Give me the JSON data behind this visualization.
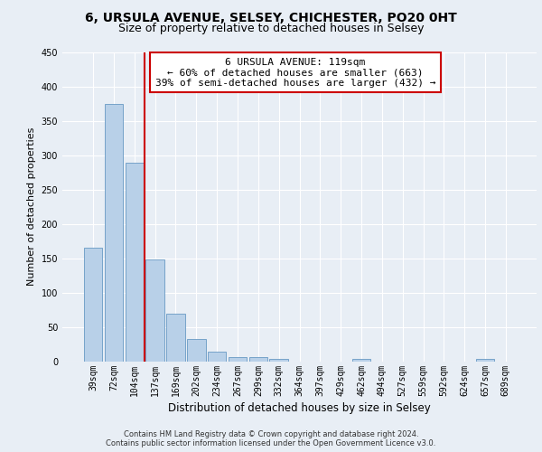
{
  "title_line1": "6, URSULA AVENUE, SELSEY, CHICHESTER, PO20 0HT",
  "title_line2": "Size of property relative to detached houses in Selsey",
  "xlabel": "Distribution of detached houses by size in Selsey",
  "ylabel": "Number of detached properties",
  "categories": [
    "39sqm",
    "72sqm",
    "104sqm",
    "137sqm",
    "169sqm",
    "202sqm",
    "234sqm",
    "267sqm",
    "299sqm",
    "332sqm",
    "364sqm",
    "397sqm",
    "429sqm",
    "462sqm",
    "494sqm",
    "527sqm",
    "559sqm",
    "592sqm",
    "624sqm",
    "657sqm",
    "689sqm"
  ],
  "values": [
    165,
    375,
    289,
    148,
    70,
    33,
    14,
    7,
    6,
    4,
    0,
    0,
    0,
    4,
    0,
    0,
    0,
    0,
    0,
    4,
    0
  ],
  "bar_color": "#b8d0e8",
  "bar_edge_color": "#6899c4",
  "vline_color": "#cc0000",
  "vline_x": 2.5,
  "annotation_line1": "6 URSULA AVENUE: 119sqm",
  "annotation_line2": "← 60% of detached houses are smaller (663)",
  "annotation_line3": "39% of semi-detached houses are larger (432) →",
  "annotation_box_color": "#ffffff",
  "annotation_box_edge": "#cc0000",
  "ylim": [
    0,
    450
  ],
  "yticks": [
    0,
    50,
    100,
    150,
    200,
    250,
    300,
    350,
    400,
    450
  ],
  "background_color": "#e8eef5",
  "grid_color": "#ffffff",
  "footer_line1": "Contains HM Land Registry data © Crown copyright and database right 2024.",
  "footer_line2": "Contains public sector information licensed under the Open Government Licence v3.0.",
  "title_fontsize": 10,
  "subtitle_fontsize": 9,
  "tick_fontsize": 7,
  "ylabel_fontsize": 8,
  "xlabel_fontsize": 8.5,
  "annot_fontsize": 8,
  "footer_fontsize": 6
}
